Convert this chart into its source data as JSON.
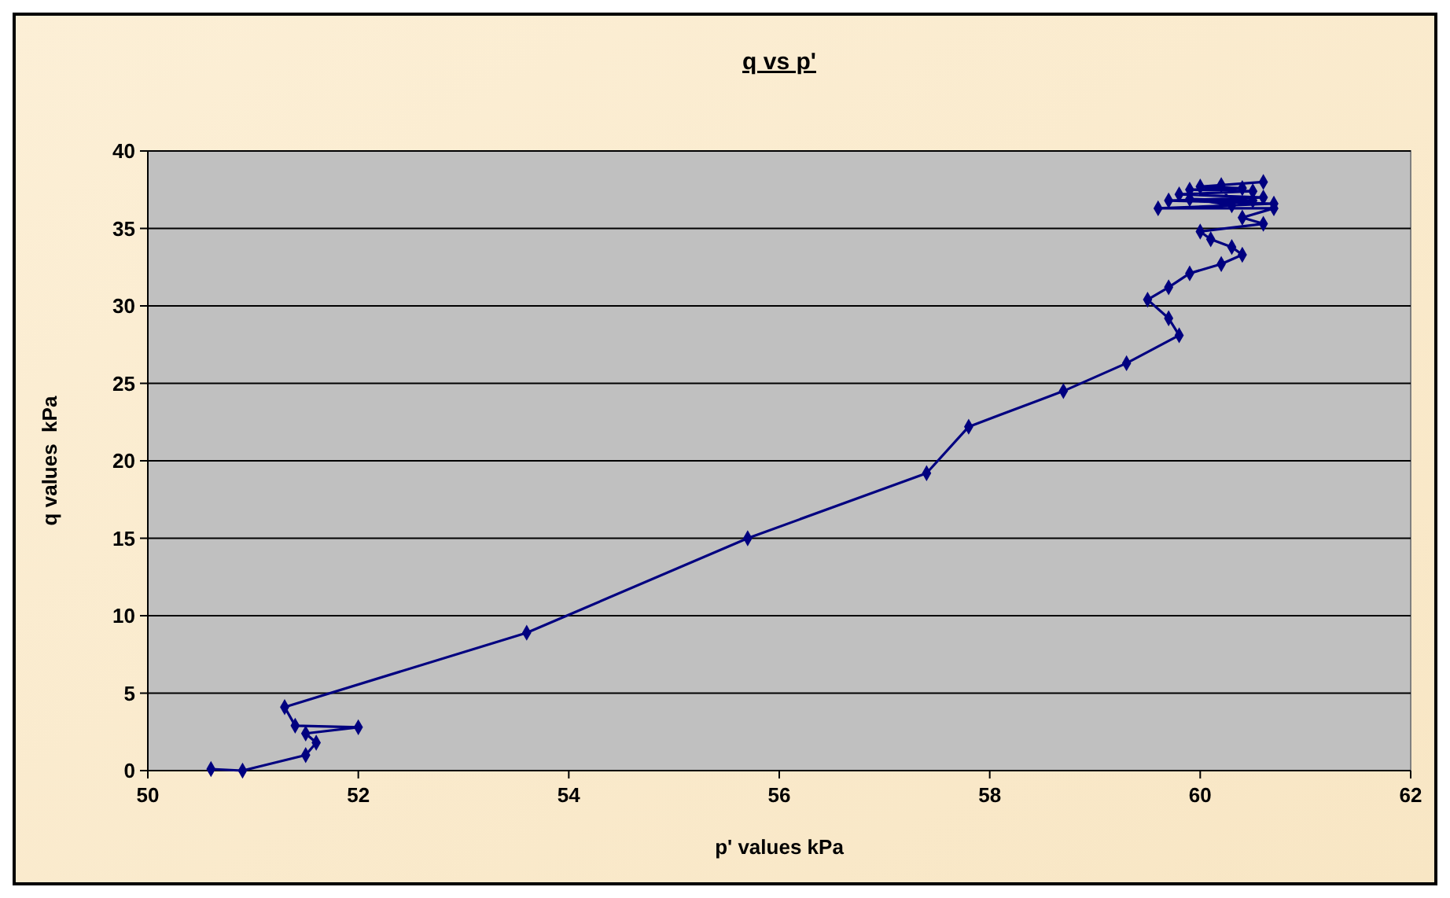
{
  "chart_data": {
    "type": "line",
    "title": "q vs p'",
    "xlabel": "p' values kPa",
    "ylabel": "q values  kPa",
    "x": [
      50.6,
      50.9,
      51.5,
      51.6,
      51.5,
      52.0,
      51.4,
      51.3,
      53.6,
      55.7,
      57.4,
      57.8,
      58.7,
      59.3,
      59.8,
      59.7,
      59.5,
      59.7,
      59.9,
      60.2,
      60.4,
      60.3,
      60.1,
      60.0,
      60.6,
      60.4,
      60.7,
      59.6,
      60.7,
      59.7,
      60.6,
      59.8,
      60.5,
      59.9,
      60.4,
      60.0,
      60.6,
      60.2,
      60.3,
      59.9,
      60.5
    ],
    "series": [
      {
        "color": "#000080",
        "values": [
          0.1,
          0.0,
          1.0,
          1.8,
          2.4,
          2.8,
          2.9,
          4.1,
          8.9,
          15.0,
          19.2,
          22.2,
          24.5,
          26.3,
          28.1,
          29.2,
          30.4,
          31.2,
          32.1,
          32.7,
          33.3,
          33.8,
          34.3,
          34.8,
          35.3,
          35.7,
          36.3,
          36.3,
          36.6,
          36.8,
          37.0,
          37.2,
          37.4,
          37.5,
          37.6,
          37.7,
          38.0,
          37.8,
          36.5,
          36.9,
          36.8
        ]
      }
    ],
    "xlim": [
      50,
      62
    ],
    "xticks": [
      50,
      52,
      54,
      56,
      58,
      60,
      62
    ],
    "ylim": [
      0,
      40
    ],
    "yticks": [
      0,
      5,
      10,
      15,
      20,
      25,
      30,
      35,
      40
    ],
    "grid": "y",
    "marker": "diamond",
    "line_style": "solid"
  }
}
